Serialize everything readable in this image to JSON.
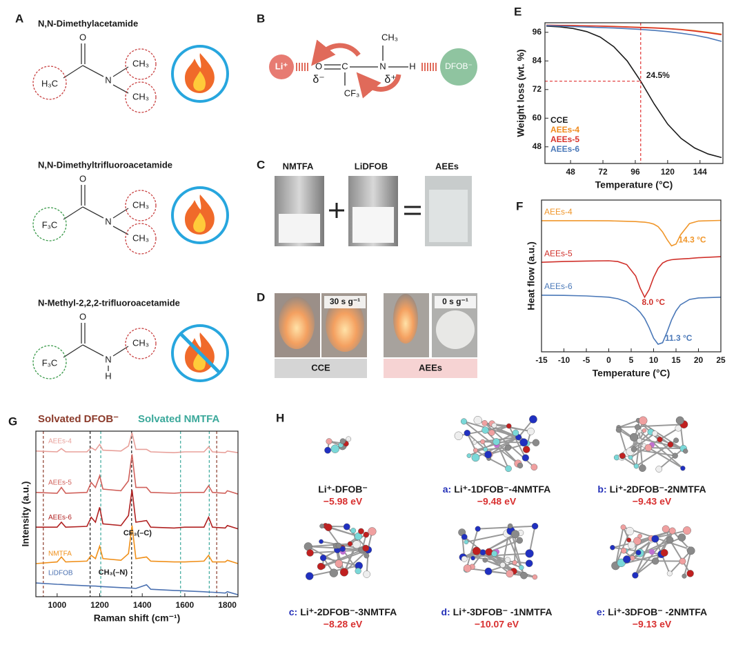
{
  "figure": {
    "A": {
      "label": "A",
      "molecules": [
        {
          "name": "N,N-Dimethylacetamide",
          "atoms": [
            "O",
            "H₃C",
            "N",
            "CH₃",
            "CH₃"
          ]
        },
        {
          "name": "N,N-Dimethyltrifluoroacetamide",
          "atoms": [
            "O",
            "F₃C",
            "N",
            "CH₃",
            "CH₃"
          ]
        },
        {
          "name": "N-Methyl-2,2,2-trifluoroacetamide",
          "atoms": [
            "O",
            "F₃C",
            "N",
            "H",
            "CH₃"
          ]
        }
      ]
    },
    "B": {
      "label": "B",
      "atoms": {
        "li": "Li⁺",
        "o": "O",
        "c": "C",
        "n": "N",
        "h": "H",
        "ch3": "CH₃",
        "cf3": "CF₃",
        "dminus": "δ⁻",
        "dplus": "δ⁺",
        "dfob": "DFOB⁻"
      }
    },
    "C": {
      "label": "C",
      "samples": [
        "NMTFA",
        "LiDFOB",
        "AEEs"
      ]
    },
    "D": {
      "label": "D",
      "times": [
        "30 s g⁻¹",
        "0 s g⁻¹"
      ],
      "groups": [
        "CCE",
        "AEEs"
      ]
    },
    "H": {
      "label": "H",
      "complexes": [
        {
          "name": "Li⁺-DFOB⁻",
          "energy": "−5.98 eV"
        },
        {
          "tag": "a:",
          "name": "Li⁺-1DFOB⁻-4NMTFA",
          "energy": "−9.48 eV"
        },
        {
          "tag": "b:",
          "name": "Li⁺-2DFOB⁻-2NMTFA",
          "energy": "−9.43 eV"
        },
        {
          "tag": "c:",
          "name": "Li⁺-2DFOB⁻-3NMTFA",
          "energy": "−8.28 eV"
        },
        {
          "tag": "d:",
          "name": "Li⁺-3DFOB⁻ -1NMTFA",
          "energy": "−10.07 eV"
        },
        {
          "tag": "e:",
          "name": "Li⁺-3DFOB⁻ -2NMTFA",
          "energy": "−9.13 eV"
        }
      ]
    }
  },
  "chart_data": [
    {
      "panel": "E",
      "type": "line",
      "x_label": "Temperature (°C)",
      "y_label": "Weight loss (wt. %)",
      "x": [
        30,
        40,
        50,
        60,
        70,
        80,
        90,
        100,
        110,
        120,
        130,
        140,
        150,
        160
      ],
      "series": [
        {
          "name": "CCE",
          "color": "#1a1a1a",
          "values": [
            98.6,
            98.3,
            97.6,
            96.3,
            94,
            90,
            84,
            75.5,
            66,
            57.5,
            51.5,
            47.5,
            45,
            43.5
          ]
        },
        {
          "name": "AEEs-4",
          "color": "#f08a1c",
          "values": [
            99,
            98.9,
            98.8,
            98.7,
            98.6,
            98.5,
            98.3,
            98.1,
            97.9,
            97.6,
            97.2,
            96.7,
            96,
            95.2
          ]
        },
        {
          "name": "AEEs-5",
          "color": "#d8322a",
          "values": [
            99,
            98.9,
            98.8,
            98.7,
            98.6,
            98.4,
            98.2,
            98,
            97.8,
            97.5,
            97.1,
            96.5,
            95.8,
            95
          ]
        },
        {
          "name": "AEEs-6",
          "color": "#4a78b8",
          "values": [
            98.8,
            98.6,
            98.4,
            98.2,
            98,
            97.8,
            97.5,
            97.2,
            96.8,
            96.3,
            95.6,
            94.8,
            93.7,
            92.2
          ]
        }
      ],
      "xlim": [
        29,
        161
      ],
      "xticks": [
        48,
        72,
        96,
        120,
        144
      ],
      "ylim": [
        41,
        100
      ],
      "yticks": [
        48,
        60,
        72,
        84,
        96
      ],
      "reference": {
        "x": 100,
        "y": 75.5,
        "label": "24.5%",
        "color": "#e03030"
      },
      "legend": "lower left"
    },
    {
      "panel": "F",
      "type": "line",
      "x_label": "Temperature (°C)",
      "y_label": "Heat flow (a.u.)",
      "x": [
        -15,
        -10,
        -5,
        0,
        2,
        4,
        6,
        7,
        8,
        9,
        10,
        11,
        12,
        13,
        14,
        15,
        16,
        18,
        20,
        25
      ],
      "series": [
        {
          "name": "AEEs-4",
          "color": "#f0962a",
          "values": [
            8.64,
            8.64,
            8.64,
            8.63,
            8.62,
            8.6,
            8.58,
            8.56,
            8.54,
            8.5,
            8.42,
            8.25,
            7.9,
            7.4,
            6.98,
            7.1,
            7.7,
            8.45,
            8.62,
            8.66
          ]
        },
        {
          "name": "AEEs-5",
          "color": "#d0302a",
          "values": [
            5.9,
            5.95,
            5.98,
            6.0,
            5.95,
            5.75,
            5.0,
            4.2,
            3.6,
            4.1,
            4.9,
            5.5,
            5.85,
            6.0,
            6.07,
            6.1,
            6.12,
            6.15,
            6.2,
            6.27
          ]
        },
        {
          "name": "AEEs-6",
          "color": "#4a78b8",
          "values": [
            3.73,
            3.72,
            3.68,
            3.6,
            3.5,
            3.3,
            2.9,
            2.6,
            2.2,
            1.6,
            0.9,
            0.5,
            0.6,
            1.3,
            2.1,
            2.7,
            3.1,
            3.45,
            3.55,
            3.6
          ]
        }
      ],
      "xlim": [
        -15,
        25
      ],
      "xticks": [
        -15,
        -10,
        -5,
        0,
        5,
        10,
        15,
        20,
        25
      ],
      "ylim": [
        0,
        10
      ],
      "annotations": [
        {
          "x": 14.3,
          "label": "14.3 °C"
        },
        {
          "x": 8.0,
          "label": "8.0 °C"
        },
        {
          "x": 11.3,
          "label": "11.3 °C"
        }
      ]
    },
    {
      "panel": "G",
      "type": "line",
      "x_label": "Raman shift (cm⁻¹)",
      "y_label": "Intensity (a.u.)",
      "x": [
        900,
        1000,
        1020,
        1040,
        1140,
        1160,
        1180,
        1200,
        1215,
        1300,
        1335,
        1352,
        1370,
        1420,
        1440,
        1550,
        1600,
        1690,
        1712,
        1730,
        1790,
        1800,
        1850
      ],
      "series": [
        {
          "name": "AEEs-4",
          "color": "#e8a09a",
          "values": [
            8.8,
            8.75,
            8.95,
            8.75,
            8.75,
            9.0,
            8.85,
            9.2,
            8.85,
            8.8,
            9.1,
            9.9,
            8.9,
            8.9,
            8.75,
            8.7,
            8.75,
            8.75,
            9.05,
            8.75,
            8.7,
            8.8,
            8.7
          ]
        },
        {
          "name": "AEEs-5",
          "color": "#d0605a",
          "values": [
            6.3,
            6.25,
            6.6,
            6.25,
            6.3,
            6.9,
            6.6,
            7.3,
            6.5,
            6.4,
            7.0,
            8.6,
            6.6,
            6.6,
            6.3,
            6.25,
            6.3,
            6.3,
            6.7,
            6.3,
            6.25,
            6.4,
            6.2
          ]
        },
        {
          "name": "AEEs-6",
          "color": "#b02020",
          "values": [
            4.2,
            4.2,
            4.5,
            4.2,
            4.25,
            4.8,
            4.5,
            5.4,
            4.4,
            4.3,
            4.9,
            6.45,
            4.5,
            4.6,
            4.2,
            4.15,
            4.2,
            4.2,
            4.8,
            4.2,
            4.15,
            4.3,
            4.1
          ]
        },
        {
          "name": "NMTFA",
          "color": "#f0901a",
          "values": [
            2.0,
            2.1,
            2.4,
            2.1,
            2.15,
            2.5,
            2.3,
            3.05,
            2.3,
            2.2,
            2.6,
            4.3,
            2.3,
            2.4,
            2.15,
            2.1,
            2.1,
            2.15,
            2.5,
            2.1,
            2.1,
            2.2,
            2.0
          ]
        },
        {
          "name": "LiDFOB",
          "color": "#4a70b0",
          "values": [
            0.83,
            0.75,
            0.74,
            0.72,
            0.66,
            0.65,
            0.64,
            0.62,
            0.61,
            0.55,
            0.53,
            0.52,
            0.5,
            0.72,
            0.45,
            0.38,
            0.35,
            0.3,
            0.28,
            0.27,
            0.22,
            0.3,
            0.12
          ]
        }
      ],
      "xlim": [
        900,
        1850
      ],
      "xticks": [
        1000,
        1200,
        1400,
        1600,
        1800
      ],
      "ylim": [
        0,
        10
      ],
      "ref_lines": [
        {
          "x": 935,
          "color": "#8b3a2a"
        },
        {
          "x": 1155,
          "color": "#1a1a1a"
        },
        {
          "x": 1205,
          "color": "#3aa89a"
        },
        {
          "x": 1350,
          "color": "#1a1a1a"
        },
        {
          "x": 1580,
          "color": "#3aa89a"
        },
        {
          "x": 1715,
          "color": "#3aa89a"
        },
        {
          "x": 1750,
          "color": "#8b3a2a"
        }
      ],
      "groups": [
        {
          "label": "Solvated DFOB⁻",
          "color": "#8b3a2a"
        },
        {
          "label": "Solvated NMTFA",
          "color": "#3aa89a"
        }
      ],
      "annotations": [
        {
          "x": 1352,
          "label": "CF₃(–C)"
        },
        {
          "x": 1155,
          "label": "CH₃(–N)"
        }
      ]
    }
  ]
}
